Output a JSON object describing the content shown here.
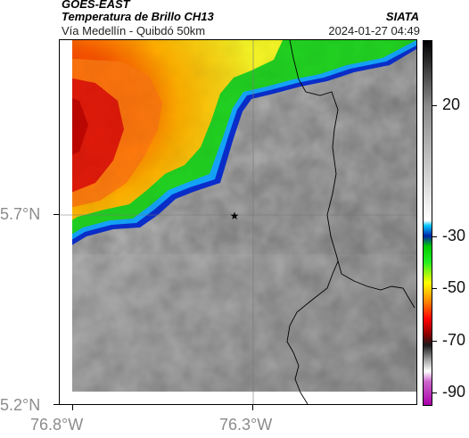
{
  "header": {
    "satellite": "GOES-EAST",
    "product": "Temperatura de Brillo CH13",
    "subtitle": "Vía Medellín - Quibdó 50km",
    "agency": "SIATA",
    "timestamp": "2024-01-27 04:49"
  },
  "map": {
    "lat_labels": [
      "5.7°N",
      "5.2°N"
    ],
    "lon_labels": [
      "76.8°W",
      "76.3°W"
    ],
    "marker": "star-icon",
    "colors": {
      "warm_gray": "#9a9a9a",
      "cold_red": "#e0160c",
      "cold_yellow": "#f5f526",
      "cold_green": "#22d422",
      "cold_blue": "#0033cc",
      "border_line": "#000000"
    }
  },
  "colorbar": {
    "tick_labels": [
      "20",
      "-30",
      "-50",
      "-70",
      "-90"
    ],
    "tick_values": [
      20,
      -30,
      -50,
      -70,
      -90
    ],
    "range": [
      -95,
      45
    ],
    "stops": [
      {
        "value": 45,
        "color": "#000000"
      },
      {
        "value": 20,
        "color": "#8a8a8a"
      },
      {
        "value": -24,
        "color": "#ffffff"
      },
      {
        "value": -26,
        "color": "#00c8ff"
      },
      {
        "value": -30,
        "color": "#0022aa"
      },
      {
        "value": -34,
        "color": "#00cc00"
      },
      {
        "value": -40,
        "color": "#22ee22"
      },
      {
        "value": -48,
        "color": "#ffff00"
      },
      {
        "value": -55,
        "color": "#ff8800"
      },
      {
        "value": -62,
        "color": "#ff0000"
      },
      {
        "value": -68,
        "color": "#880000"
      },
      {
        "value": -72,
        "color": "#1a1a1a"
      },
      {
        "value": -78,
        "color": "#aaaaaa"
      },
      {
        "value": -82,
        "color": "#ffffff"
      },
      {
        "value": -86,
        "color": "#cc66cc"
      },
      {
        "value": -95,
        "color": "#aa00aa"
      }
    ]
  }
}
